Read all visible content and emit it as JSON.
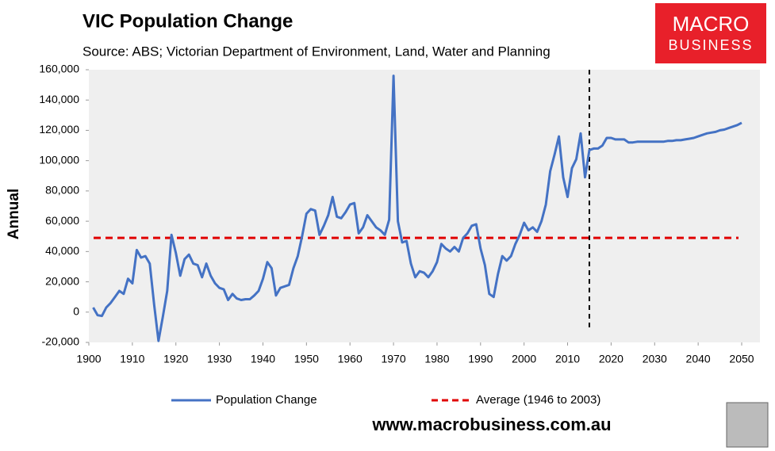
{
  "chart_data": {
    "type": "line",
    "title": "VIC Population Change",
    "subtitle": "Source: ABS; Victorian Department of Environment, Land, Water and Planning",
    "y_label": "Annual",
    "logo": [
      "MACRO",
      "BUSINESS"
    ],
    "footer": "www.macrobusiness.com.au",
    "x": [
      1901,
      1902,
      1903,
      1904,
      1905,
      1906,
      1907,
      1908,
      1909,
      1910,
      1911,
      1912,
      1913,
      1914,
      1915,
      1916,
      1917,
      1918,
      1919,
      1920,
      1921,
      1922,
      1923,
      1924,
      1925,
      1926,
      1927,
      1928,
      1929,
      1930,
      1931,
      1932,
      1933,
      1934,
      1935,
      1936,
      1937,
      1938,
      1939,
      1940,
      1941,
      1942,
      1943,
      1944,
      1945,
      1946,
      1947,
      1948,
      1949,
      1950,
      1951,
      1952,
      1953,
      1954,
      1955,
      1956,
      1957,
      1958,
      1959,
      1960,
      1961,
      1962,
      1963,
      1964,
      1965,
      1966,
      1967,
      1968,
      1969,
      1970,
      1971,
      1972,
      1973,
      1974,
      1975,
      1976,
      1977,
      1978,
      1979,
      1980,
      1981,
      1982,
      1983,
      1984,
      1985,
      1986,
      1987,
      1988,
      1989,
      1990,
      1991,
      1992,
      1993,
      1994,
      1995,
      1996,
      1997,
      1998,
      1999,
      2000,
      2001,
      2002,
      2003,
      2004,
      2005,
      2006,
      2007,
      2008,
      2009,
      2010,
      2011,
      2012,
      2013,
      2014,
      2015,
      2016,
      2017,
      2018,
      2019,
      2020,
      2021,
      2022,
      2023,
      2024,
      2025,
      2026,
      2027,
      2028,
      2029,
      2030,
      2031,
      2032,
      2033,
      2034,
      2035,
      2036,
      2037,
      2038,
      2039,
      2040,
      2041,
      2042,
      2043,
      2044,
      2045,
      2046,
      2047,
      2048,
      2049,
      2050
    ],
    "series": [
      {
        "name": "Population Change",
        "color": "#4472c4",
        "values": [
          3000,
          -2000,
          -2500,
          3000,
          6000,
          10000,
          14000,
          12000,
          22000,
          19000,
          41000,
          36000,
          37000,
          32000,
          5000,
          -19000,
          -3000,
          14000,
          51000,
          39000,
          24000,
          35000,
          38000,
          32000,
          31000,
          23000,
          32000,
          24000,
          19000,
          16000,
          15000,
          8000,
          12000,
          9000,
          8000,
          8500,
          8500,
          11000,
          14000,
          22000,
          33000,
          29000,
          11000,
          16000,
          17000,
          18000,
          29000,
          37000,
          50000,
          65000,
          68000,
          67000,
          51000,
          57000,
          64000,
          76000,
          63000,
          62000,
          66000,
          71000,
          72000,
          52000,
          56000,
          64000,
          60000,
          56000,
          54000,
          51000,
          61000,
          156000,
          60000,
          46000,
          47000,
          32000,
          23000,
          27000,
          26000,
          23000,
          27000,
          33000,
          45000,
          42000,
          40000,
          43000,
          40000,
          49000,
          52000,
          57000,
          58000,
          42000,
          31000,
          12000,
          10000,
          25000,
          37000,
          34000,
          37000,
          45000,
          51000,
          59000,
          54000,
          56000,
          53000,
          60000,
          71000,
          93000,
          104000,
          116000,
          89000,
          76000,
          95000,
          101000,
          118000,
          89000,
          107000,
          108000,
          108000,
          110000,
          115000,
          115000,
          114000,
          114000,
          114000,
          112000,
          112000,
          112500,
          112500,
          112500,
          112500,
          112500,
          112500,
          112500,
          113000,
          113000,
          113500,
          113500,
          114000,
          114500,
          115000,
          116000,
          117000,
          118000,
          118500,
          119000,
          120000,
          120500,
          121500,
          122500,
          123500,
          125000
        ]
      }
    ],
    "reference_line": {
      "name": "Average (1946 to 2003)",
      "value": 49000,
      "color": "#e00000"
    },
    "divider_x": 2015,
    "xlim": [
      1900,
      2050
    ],
    "xticks": [
      1900,
      1910,
      1920,
      1930,
      1940,
      1950,
      1960,
      1970,
      1980,
      1990,
      2000,
      2010,
      2020,
      2030,
      2040,
      2050
    ],
    "ylim": [
      -20000,
      160000
    ],
    "yticks": [
      {
        "value": -20000,
        "label": "-20,000"
      },
      0,
      {
        "value": 20000,
        "label": "20,000"
      },
      {
        "value": 40000,
        "label": "40,000"
      },
      {
        "value": 60000,
        "label": "60,000"
      },
      {
        "value": 80000,
        "label": "80,000"
      },
      {
        "value": 100000,
        "label": "100,000"
      },
      {
        "value": 120000,
        "label": "120,000"
      },
      {
        "value": 140000,
        "label": "140,000"
      },
      {
        "value": 160000,
        "label": "160,000"
      }
    ]
  }
}
